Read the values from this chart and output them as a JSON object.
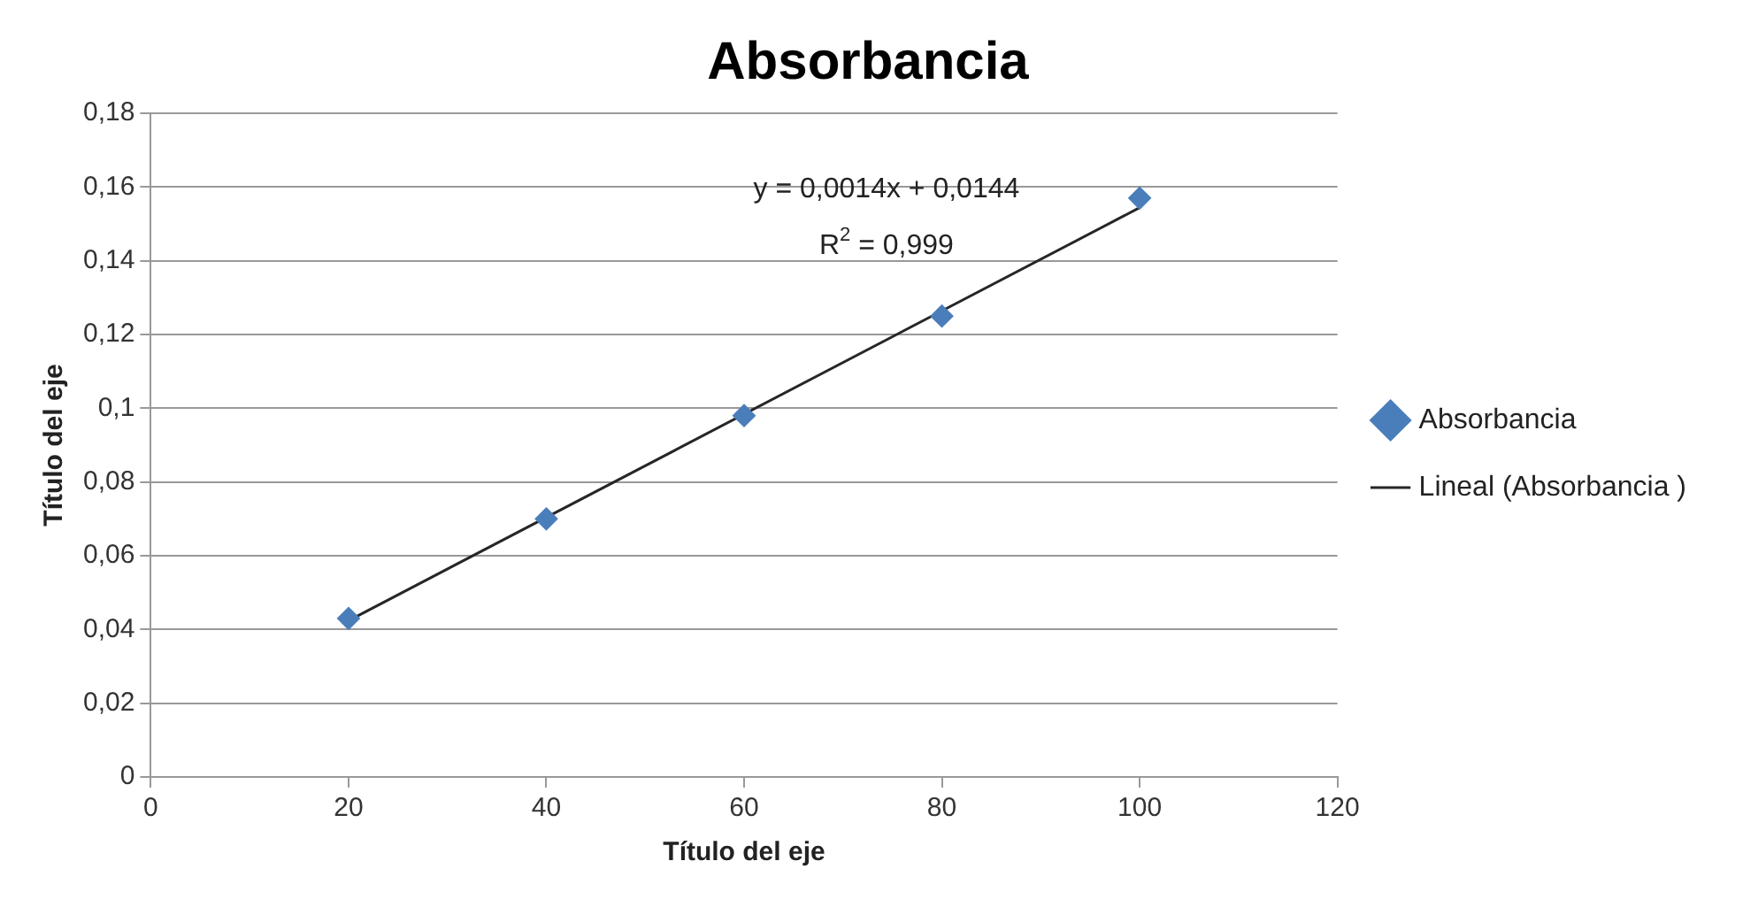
{
  "chart_data": {
    "type": "scatter",
    "title": "Absorbancia",
    "xlabel": "Título del eje",
    "ylabel": "Título del eje",
    "x": [
      20,
      40,
      60,
      80,
      100
    ],
    "series": [
      {
        "name": "Absorbancia",
        "type": "scatter",
        "color": "#4a7ebb",
        "marker": "diamond",
        "values": [
          0.043,
          0.07,
          0.098,
          0.125,
          0.157
        ]
      },
      {
        "name": "Lineal (Absorbancia )",
        "type": "line",
        "color": "#262626",
        "marker": "none",
        "x": [
          20,
          100
        ],
        "values": [
          0.0424,
          0.1544
        ]
      }
    ],
    "xlim": [
      0,
      120
    ],
    "xticks": [
      0,
      20,
      40,
      60,
      80,
      100,
      120
    ],
    "ylim": [
      0,
      0.18
    ],
    "yticks": [
      0,
      {
        "value": 0.02,
        "label": "0,02"
      },
      {
        "value": 0.04,
        "label": "0,04"
      },
      {
        "value": 0.06,
        "label": "0,06"
      },
      {
        "value": 0.08,
        "label": "0,08"
      },
      {
        "value": 0.1,
        "label": "0,1"
      },
      {
        "value": 0.12,
        "label": "0,12"
      },
      {
        "value": 0.14,
        "label": "0,14"
      },
      {
        "value": 0.16,
        "label": "0,16"
      },
      {
        "value": 0.18,
        "label": "0,18"
      }
    ],
    "grid": "y",
    "legend": "right",
    "annotations": [
      "y = 0,0014x + 0,0144",
      "R$^{2}$ = 0,999"
    ]
  }
}
